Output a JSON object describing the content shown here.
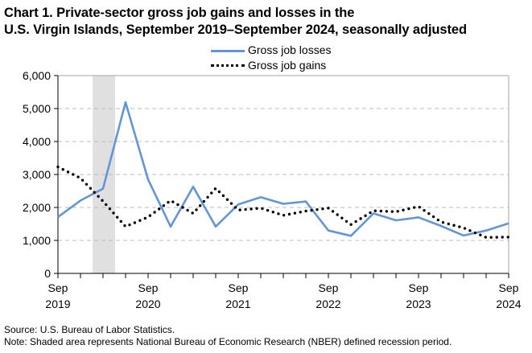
{
  "chart_data": {
    "type": "line",
    "title_line1": "Chart 1. Private-sector gross job gains and losses in the",
    "title_line2": "U.S. Virgin Islands, September 2019–September 2024, seasonally adjusted",
    "xlabel": "",
    "ylabel": "",
    "ylim": [
      0,
      6000
    ],
    "yticks": [
      0,
      1000,
      2000,
      3000,
      4000,
      5000,
      6000
    ],
    "ytick_labels": [
      "0",
      "1,000",
      "2,000",
      "3,000",
      "4,000",
      "5,000",
      "6,000"
    ],
    "grid": true,
    "legend_position": "top-center",
    "x": [
      "Sep 2019",
      "Dec 2019",
      "Mar 2020",
      "Jun 2020",
      "Sep 2020",
      "Dec 2020",
      "Mar 2021",
      "Jun 2021",
      "Sep 2021",
      "Dec 2021",
      "Mar 2022",
      "Jun 2022",
      "Sep 2022",
      "Dec 2022",
      "Mar 2023",
      "Jun 2023",
      "Sep 2023",
      "Dec 2023",
      "Mar 2024",
      "Jun 2024",
      "Sep 2024"
    ],
    "xtick_labels": [
      {
        "index": 0,
        "month": "Sep",
        "year": "2019"
      },
      {
        "index": 4,
        "month": "Sep",
        "year": "2020"
      },
      {
        "index": 8,
        "month": "Sep",
        "year": "2021"
      },
      {
        "index": 12,
        "month": "Sep",
        "year": "2022"
      },
      {
        "index": 16,
        "month": "Sep",
        "year": "2023"
      },
      {
        "index": 20,
        "month": "Sep",
        "year": "2024"
      }
    ],
    "series": [
      {
        "name": "Gross job losses",
        "style": "solid",
        "color": "#6495d8",
        "values": [
          1710,
          2210,
          2570,
          5190,
          2850,
          1420,
          2630,
          1420,
          2090,
          2310,
          2110,
          2180,
          1300,
          1140,
          1820,
          1610,
          1700,
          1440,
          1150,
          1300,
          1520
        ]
      },
      {
        "name": "Gross job gains",
        "style": "dotted",
        "color": "#000000",
        "values": [
          3230,
          2890,
          2190,
          1420,
          1710,
          2210,
          1820,
          2580,
          1920,
          1980,
          1760,
          1890,
          1980,
          1480,
          1900,
          1870,
          2030,
          1560,
          1380,
          1090,
          1100
        ]
      }
    ],
    "recession": {
      "label": "NBER defined recession period",
      "start_quarter_index": 1.54,
      "end_quarter_index": 2.54,
      "color": "#e0e0e0"
    },
    "source": "Source: U.S. Bureau of Labor Statistics.",
    "note": "Note: Shaded area represents National Bureau of Economic Research (NBER) defined recession period."
  }
}
